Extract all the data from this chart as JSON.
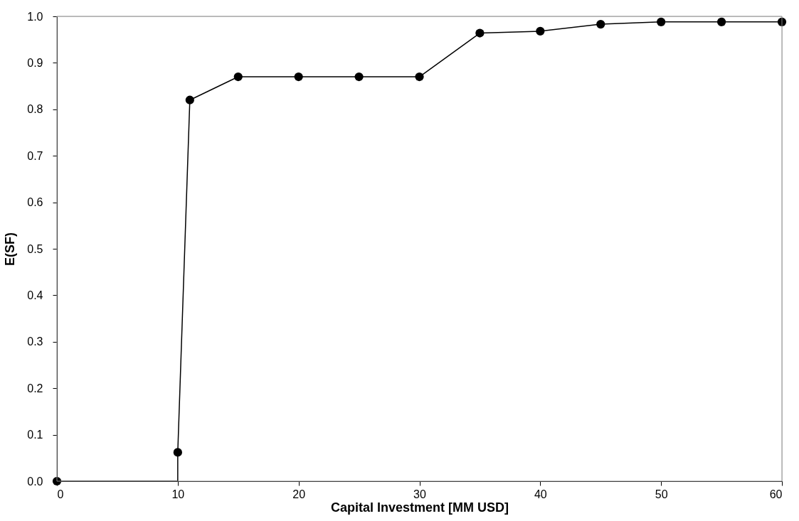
{
  "chart_data": {
    "type": "line",
    "xlabel": "Capital Investment [MM USD]",
    "ylabel": "E(SF)",
    "xlim": [
      0,
      60
    ],
    "xticks": [
      0,
      10,
      20,
      30,
      40,
      50,
      60
    ],
    "ylim": [
      0,
      1.0
    ],
    "yticks": [
      {
        "value": 0,
        "label": "0.0"
      },
      {
        "value": 0.1,
        "label": "0.1"
      },
      {
        "value": 0.2,
        "label": "0.2"
      },
      {
        "value": 0.3,
        "label": "0.3"
      },
      {
        "value": 0.4,
        "label": "0.4"
      },
      {
        "value": 0.5,
        "label": "0.5"
      },
      {
        "value": 0.6,
        "label": "0.6"
      },
      {
        "value": 0.7,
        "label": "0.7"
      },
      {
        "value": 0.8,
        "label": "0.8"
      },
      {
        "value": 0.9,
        "label": "0.9"
      },
      {
        "value": 1.0,
        "label": "1.0"
      }
    ],
    "grid": false,
    "line_style": "solid",
    "series": [
      {
        "marker": "none",
        "color": "#000000",
        "x": [
          0,
          10,
          10,
          11,
          15,
          20,
          25,
          30,
          35,
          40,
          45,
          50,
          55,
          60
        ],
        "values": [
          0,
          0,
          0.062,
          0.82,
          0.87,
          0.87,
          0.87,
          0.87,
          0.964,
          0.968,
          0.983,
          0.988,
          0.988,
          0.988
        ]
      },
      {
        "type": "scatter",
        "marker": "circle",
        "color": "#000000",
        "x": [
          0,
          10,
          11,
          15,
          20,
          25,
          30,
          35,
          40,
          45,
          50,
          55,
          60
        ],
        "values": [
          0,
          0.062,
          0.82,
          0.87,
          0.87,
          0.87,
          0.87,
          0.964,
          0.968,
          0.983,
          0.988,
          0.988,
          0.988
        ]
      }
    ]
  }
}
